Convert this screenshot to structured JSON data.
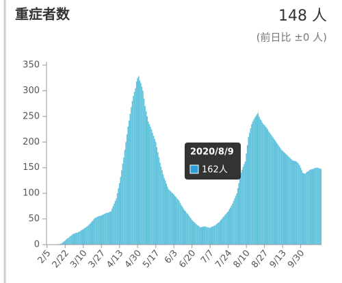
{
  "header": {
    "title": "重症者数",
    "current": "148 人",
    "change": "(前日比 ±0 人)"
  },
  "chart_data": {
    "type": "bar",
    "color": "#62c3dc",
    "categories": [
      "2/5",
      null,
      null,
      null,
      null,
      null,
      null,
      null,
      null,
      null,
      null,
      null,
      null,
      null,
      null,
      null,
      null,
      "2/22",
      null,
      null,
      null,
      null,
      null,
      null,
      null,
      null,
      null,
      null,
      null,
      null,
      null,
      null,
      null,
      null,
      "3/10",
      null,
      null,
      null,
      null,
      null,
      null,
      null,
      null,
      null,
      null,
      null,
      null,
      null,
      null,
      null,
      null,
      "3/27",
      null,
      null,
      null,
      null,
      null,
      null,
      null,
      null,
      null,
      null,
      null,
      null,
      null,
      null,
      null,
      null,
      "4/13",
      null,
      null,
      null,
      null,
      null,
      null,
      null,
      null,
      null,
      null,
      null,
      null,
      null,
      null,
      null,
      null,
      "4/30",
      null,
      null,
      null,
      null,
      null,
      null,
      null,
      null,
      null,
      null,
      null,
      null,
      null,
      null,
      null,
      null,
      "5/17",
      null,
      null,
      null,
      null,
      null,
      null,
      null,
      null,
      null,
      null,
      null,
      null,
      null,
      null,
      null,
      null,
      "6/3",
      null,
      null,
      null,
      null,
      null,
      null,
      null,
      null,
      null,
      null,
      null,
      null,
      null,
      null,
      null,
      null,
      "6/20",
      null,
      null,
      null,
      null,
      null,
      null,
      null,
      null,
      null,
      null,
      null,
      null,
      null,
      null,
      null,
      null,
      "7/7",
      null,
      null,
      null,
      null,
      null,
      null,
      null,
      null,
      null,
      null,
      null,
      null,
      null,
      null,
      null,
      null,
      "7/24",
      null,
      null,
      null,
      null,
      null,
      null,
      null,
      null,
      null,
      null,
      null,
      null,
      null,
      null,
      null,
      null,
      "8/10",
      null,
      null,
      null,
      null,
      null,
      null,
      null,
      null,
      null,
      null,
      null,
      null,
      null,
      null,
      null,
      null,
      "8/27",
      null,
      null,
      null,
      null,
      null,
      null,
      null,
      null,
      null,
      null,
      null,
      null,
      null,
      null,
      null,
      null,
      "9/13",
      null,
      null,
      null,
      null,
      null,
      null,
      null,
      null,
      null,
      null,
      null,
      null,
      null,
      null,
      null,
      null,
      "9/30",
      null,
      null,
      null,
      null,
      null,
      null,
      null,
      null,
      null,
      null,
      null,
      null,
      null,
      null,
      null,
      null,
      null,
      null,
      null
    ],
    "values": [
      0,
      0,
      0,
      0,
      0,
      0,
      0,
      0,
      0,
      0,
      0,
      1,
      1,
      2,
      3,
      5,
      6,
      8,
      10,
      12,
      13,
      15,
      17,
      18,
      20,
      21,
      22,
      23,
      23,
      24,
      25,
      26,
      28,
      29,
      30,
      32,
      33,
      35,
      36,
      38,
      40,
      42,
      45,
      47,
      50,
      52,
      53,
      54,
      55,
      56,
      56,
      57,
      58,
      59,
      60,
      61,
      62,
      62,
      63,
      64,
      65,
      70,
      75,
      80,
      85,
      90,
      100,
      110,
      120,
      132,
      145,
      158,
      170,
      185,
      200,
      215,
      230,
      242,
      255,
      268,
      280,
      290,
      298,
      305,
      318,
      325,
      328,
      320,
      315,
      308,
      300,
      285,
      270,
      260,
      250,
      240,
      235,
      230,
      225,
      218,
      212,
      206,
      200,
      190,
      180,
      170,
      160,
      152,
      145,
      137,
      130,
      125,
      119,
      113,
      108,
      106,
      104,
      102,
      100,
      98,
      95,
      93,
      90,
      88,
      85,
      81,
      77,
      74,
      70,
      67,
      65,
      62,
      60,
      57,
      54,
      51,
      48,
      46,
      44,
      42,
      40,
      38,
      37,
      35,
      34,
      34,
      35,
      35,
      36,
      35,
      34,
      34,
      33,
      33,
      34,
      35,
      36,
      37,
      38,
      40,
      42,
      43,
      45,
      48,
      50,
      53,
      55,
      58,
      60,
      63,
      65,
      69,
      72,
      76,
      80,
      85,
      90,
      95,
      100,
      110,
      120,
      130,
      140,
      146,
      152,
      157,
      162,
      178,
      194,
      210,
      218,
      227,
      235,
      240,
      244,
      248,
      251,
      254,
      257,
      250,
      245,
      242,
      238,
      235,
      233,
      230,
      228,
      225,
      221,
      218,
      215,
      212,
      209,
      206,
      203,
      200,
      197,
      194,
      191,
      188,
      185,
      183,
      181,
      179,
      177,
      175,
      173,
      171,
      169,
      167,
      165,
      164,
      163,
      163,
      162,
      160,
      158,
      155,
      150,
      145,
      140,
      139,
      138,
      140,
      142,
      143,
      145,
      146,
      147,
      147,
      148,
      149,
      150,
      150,
      150,
      149,
      148,
      148
    ],
    "ylim": [
      0,
      350
    ],
    "yticks": [
      0,
      50,
      100,
      150,
      200,
      250,
      300,
      350
    ],
    "tooltip": {
      "title": "2020/8/9",
      "value": 162,
      "value_label": "162人",
      "color": "#2a9fd8"
    }
  }
}
